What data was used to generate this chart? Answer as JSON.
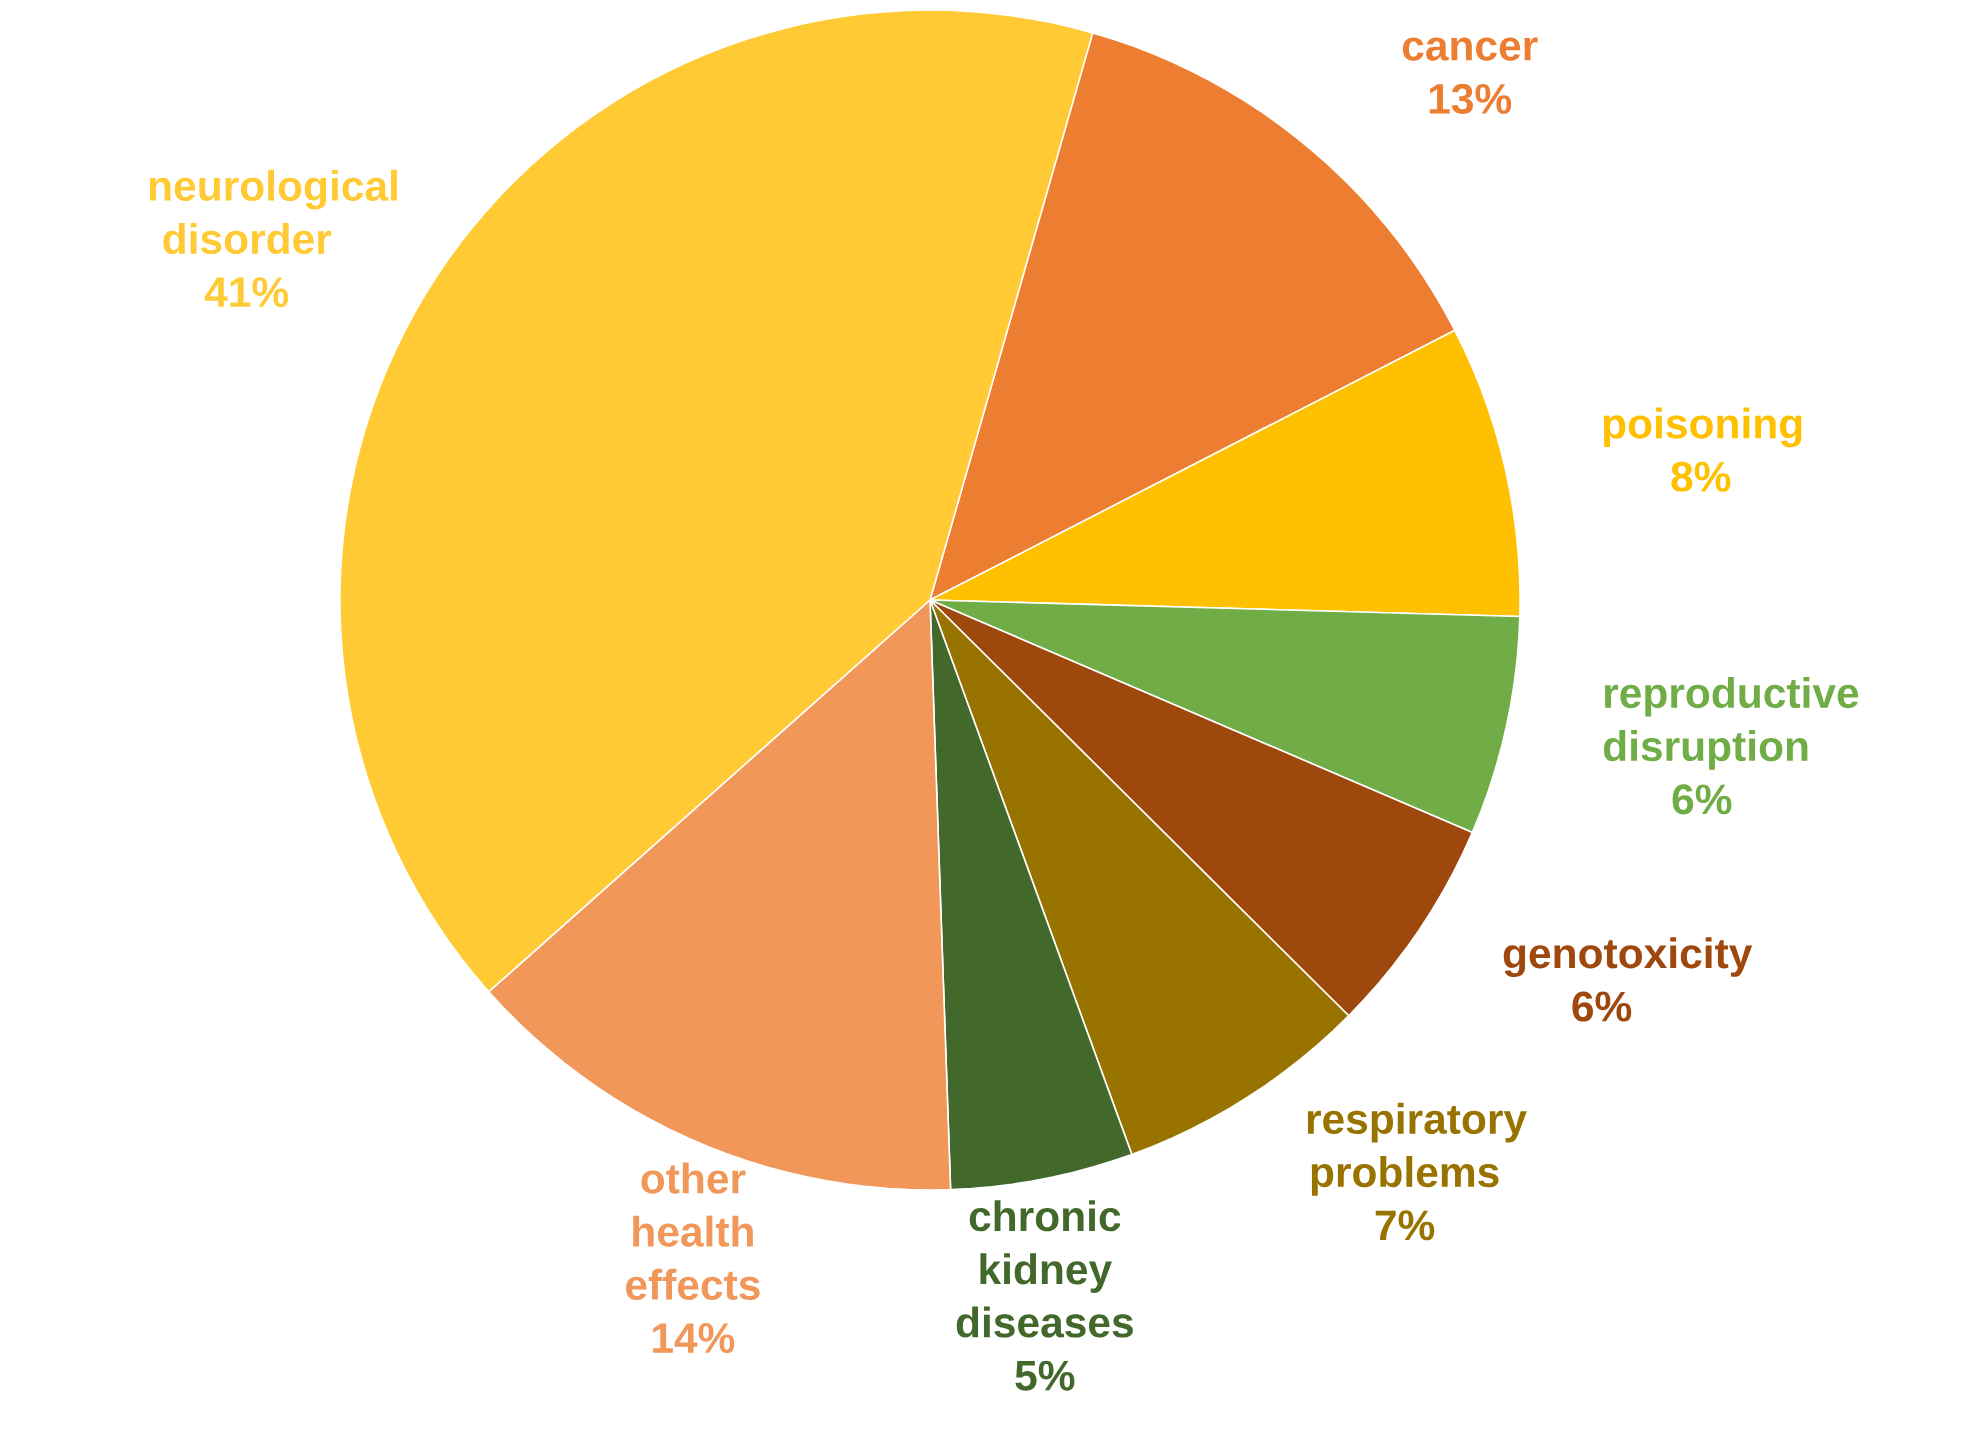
{
  "chart_data": {
    "type": "pie",
    "categories": [
      "cancer",
      "poisoning",
      "reproductive disruption",
      "genotoxicity",
      "respiratory problems",
      "chronic kidney diseases",
      "other health effects",
      "neurological disorder"
    ],
    "values": [
      13,
      8,
      6,
      6,
      7,
      5,
      14,
      41
    ],
    "value_labels": [
      "13%",
      "8%",
      "6%",
      "6%",
      "7%",
      "5%",
      "14%",
      "41%"
    ],
    "colors": [
      "#ed7d31",
      "#ffc000",
      "#70ad47",
      "#9e480e",
      "#997300",
      "#43682b",
      "#f1975a",
      "#ffca33"
    ]
  }
}
